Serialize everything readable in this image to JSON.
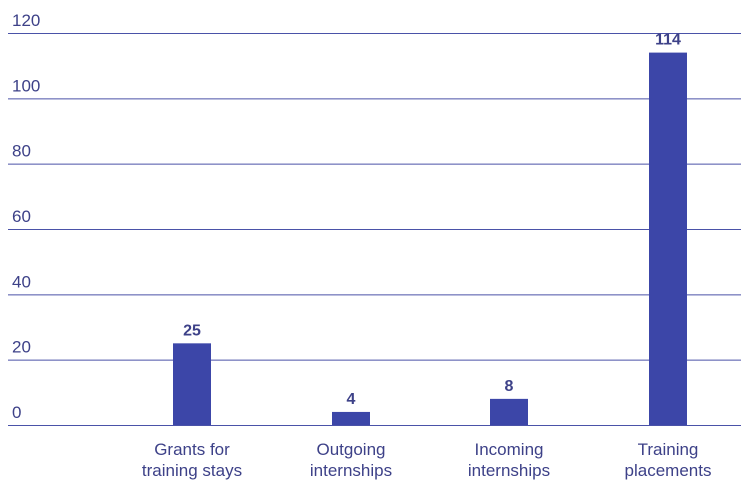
{
  "colors": {
    "bar": "#3c46a8",
    "grid": "#4a52a8",
    "text": "#3d4188"
  },
  "chart_data": {
    "type": "bar",
    "categories": [
      [
        "Grants for",
        "training stays"
      ],
      [
        "Outgoing",
        "internships"
      ],
      [
        "Incoming",
        "internships"
      ],
      [
        "Training",
        "placements"
      ]
    ],
    "values": [
      25,
      4,
      8,
      114
    ],
    "data_labels": [
      "25",
      "4",
      "8",
      "114"
    ],
    "yticks": [
      "0",
      "20",
      "40",
      "60",
      "80",
      "100",
      "120"
    ],
    "ylim": [
      0,
      120
    ],
    "grid": true,
    "legend": "none"
  }
}
